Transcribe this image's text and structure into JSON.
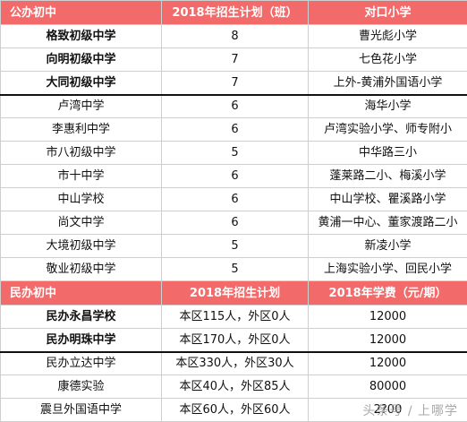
{
  "public": {
    "headers": [
      "公办初中",
      "2018年招生计划（班）",
      "对口小学"
    ],
    "rows": [
      {
        "school": "格致初级中学",
        "plan": "8",
        "primary": "曹光彪小学",
        "bold": true
      },
      {
        "school": "向明初级中学",
        "plan": "7",
        "primary": "七色花小学",
        "bold": true
      },
      {
        "school": "大同初级中学",
        "plan": "7",
        "primary": "上外-黄浦外国语小学",
        "bold": true
      },
      {
        "school": "卢湾中学",
        "plan": "6",
        "primary": "海华小学",
        "bold": false
      },
      {
        "school": "李惠利中学",
        "plan": "6",
        "primary": "卢湾实验小学、师专附小",
        "bold": false
      },
      {
        "school": "市八初级中学",
        "plan": "5",
        "primary": "中华路三小",
        "bold": false
      },
      {
        "school": "市十中学",
        "plan": "6",
        "primary": "蓬莱路二小、梅溪小学",
        "bold": false
      },
      {
        "school": "中山学校",
        "plan": "6",
        "primary": "中山学校、瞿溪路小学",
        "bold": false
      },
      {
        "school": "尚文中学",
        "plan": "6",
        "primary": "黄浦一中心、董家渡路二小",
        "bold": false
      },
      {
        "school": "大境初级中学",
        "plan": "5",
        "primary": "新凌小学",
        "bold": false
      },
      {
        "school": "敬业初级中学",
        "plan": "5",
        "primary": "上海实验小学、回民小学",
        "bold": false
      }
    ]
  },
  "private": {
    "headers": [
      "民办初中",
      "2018年招生计划",
      "2018年学费（元/期）"
    ],
    "rows": [
      {
        "school": "民办永昌学校",
        "plan": "本区115人，外区0人",
        "fee": "12000",
        "bold": true
      },
      {
        "school": "民办明珠中学",
        "plan": "本区170人，外区0人",
        "fee": "12000",
        "bold": true
      },
      {
        "school": "民办立达中学",
        "plan": "本区330人，外区30人",
        "fee": "12000",
        "bold": false
      },
      {
        "school": "康德实验",
        "plan": "本区40人，外区85人",
        "fee": "80000",
        "bold": false
      },
      {
        "school": "震旦外国语中学",
        "plan": "本区60人，外区60人",
        "fee": "2?00",
        "bold": false
      }
    ]
  },
  "watermark": "头条号 / 上哪学",
  "colors": {
    "header_bg": "#f26a6a",
    "header_text": "#ffffff",
    "border": "#cfcfcf"
  }
}
